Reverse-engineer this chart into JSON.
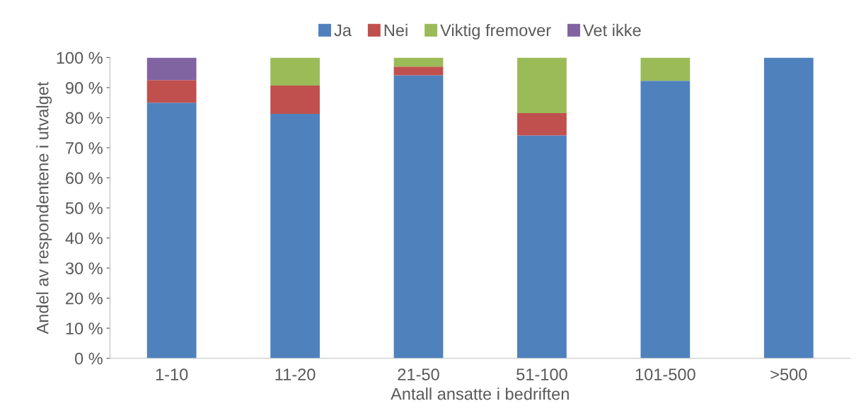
{
  "chart_data": {
    "type": "bar",
    "stacked": true,
    "xlabel": "Antall ansatte i bedriften",
    "ylabel": "Andel av respondentene i utvalget",
    "categories": [
      "1-10",
      "11-20",
      "21-50",
      "51-100",
      "101-500",
      ">500"
    ],
    "series": [
      {
        "name": "Ja",
        "color": "#4f81bd",
        "values": [
          85,
          81.3,
          94.1,
          74.1,
          92.3,
          100
        ]
      },
      {
        "name": "Nei",
        "color": "#c0504d",
        "values": [
          7.5,
          9.4,
          2.9,
          7.4,
          0,
          0
        ]
      },
      {
        "name": "Viktig fremover",
        "color": "#9bbb59",
        "values": [
          0,
          9.3,
          3,
          18.5,
          7.7,
          0
        ]
      },
      {
        "name": "Vet ikke",
        "color": "#8064a2",
        "values": [
          7.5,
          0,
          0,
          0,
          0,
          0
        ]
      }
    ],
    "ylim": [
      0,
      100
    ],
    "yticks": [
      {
        "value": 0,
        "label": "0 %"
      },
      {
        "value": 10,
        "label": "10 %"
      },
      {
        "value": 20,
        "label": "20 %"
      },
      {
        "value": 30,
        "label": "30 %"
      },
      {
        "value": 40,
        "label": "40 %"
      },
      {
        "value": 50,
        "label": "50 %"
      },
      {
        "value": 60,
        "label": "60 %"
      },
      {
        "value": 70,
        "label": "70 %"
      },
      {
        "value": 80,
        "label": "80 %"
      },
      {
        "value": 90,
        "label": "90 %"
      },
      {
        "value": 100,
        "label": "100 %"
      }
    ],
    "legend": "top",
    "grid": false
  }
}
